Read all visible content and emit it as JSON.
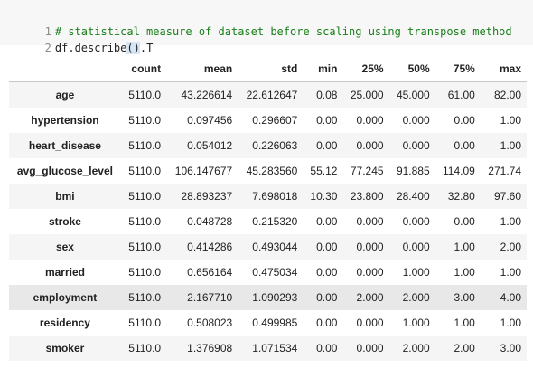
{
  "code": {
    "line1_number": "1",
    "line1_text": "# statistical measure of dataset before scaling using transpose method",
    "line2_number": "2",
    "line2_prefix": "df.describe",
    "line2_parens": "()",
    "line2_suffix": ".T"
  },
  "table": {
    "columns": [
      "count",
      "mean",
      "std",
      "min",
      "25%",
      "50%",
      "75%",
      "max"
    ],
    "rows": [
      {
        "index": "age",
        "values": [
          "5110.0",
          "43.226614",
          "22.612647",
          "0.08",
          "25.000",
          "45.000",
          "61.00",
          "82.00"
        ]
      },
      {
        "index": "hypertension",
        "values": [
          "5110.0",
          "0.097456",
          "0.296607",
          "0.00",
          "0.000",
          "0.000",
          "0.00",
          "1.00"
        ]
      },
      {
        "index": "heart_disease",
        "values": [
          "5110.0",
          "0.054012",
          "0.226063",
          "0.00",
          "0.000",
          "0.000",
          "0.00",
          "1.00"
        ]
      },
      {
        "index": "avg_glucose_level",
        "values": [
          "5110.0",
          "106.147677",
          "45.283560",
          "55.12",
          "77.245",
          "91.885",
          "114.09",
          "271.74"
        ]
      },
      {
        "index": "bmi",
        "values": [
          "5110.0",
          "28.893237",
          "7.698018",
          "10.30",
          "23.800",
          "28.400",
          "32.80",
          "97.60"
        ]
      },
      {
        "index": "stroke",
        "values": [
          "5110.0",
          "0.048728",
          "0.215320",
          "0.00",
          "0.000",
          "0.000",
          "0.00",
          "1.00"
        ]
      },
      {
        "index": "sex",
        "values": [
          "5110.0",
          "0.414286",
          "0.493044",
          "0.00",
          "0.000",
          "0.000",
          "1.00",
          "2.00"
        ]
      },
      {
        "index": "married",
        "values": [
          "5110.0",
          "0.656164",
          "0.475034",
          "0.00",
          "0.000",
          "1.000",
          "1.00",
          "1.00"
        ]
      },
      {
        "index": "employment",
        "values": [
          "5110.0",
          "2.167710",
          "1.090293",
          "0.00",
          "2.000",
          "2.000",
          "3.00",
          "4.00"
        ]
      },
      {
        "index": "residency",
        "values": [
          "5110.0",
          "0.508023",
          "0.499985",
          "0.00",
          "0.000",
          "1.000",
          "1.00",
          "1.00"
        ]
      },
      {
        "index": "smoker",
        "values": [
          "5110.0",
          "1.376908",
          "1.071534",
          "0.00",
          "0.000",
          "2.000",
          "2.00",
          "3.00"
        ]
      }
    ]
  }
}
